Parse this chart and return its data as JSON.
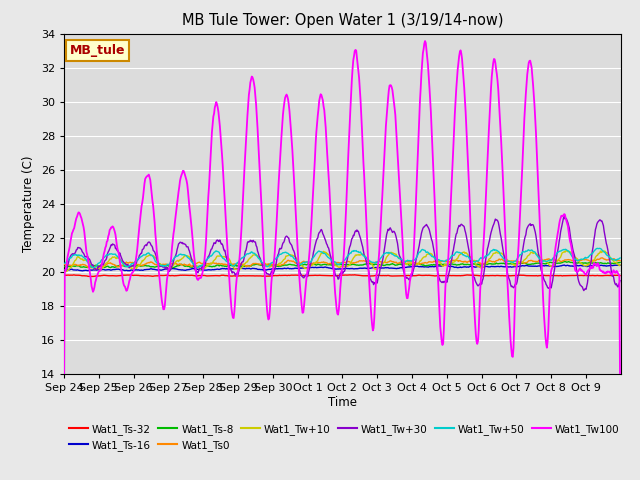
{
  "title": "MB Tule Tower: Open Water 1 (3/19/14-now)",
  "xlabel": "Time",
  "ylabel": "Temperature (C)",
  "ylim": [
    14,
    34
  ],
  "yticks": [
    14,
    16,
    18,
    20,
    22,
    24,
    26,
    28,
    30,
    32,
    34
  ],
  "figsize": [
    6.4,
    4.8
  ],
  "dpi": 100,
  "background_color": "#e8e8e8",
  "plot_bg_color": "#dcdcdc",
  "series": [
    {
      "name": "Wat1_Ts-32",
      "color": "#ff0000"
    },
    {
      "name": "Wat1_Ts-16",
      "color": "#0000cc"
    },
    {
      "name": "Wat1_Ts-8",
      "color": "#00bb00"
    },
    {
      "name": "Wat1_Ts0",
      "color": "#ff8800"
    },
    {
      "name": "Wat1_Tw+10",
      "color": "#cccc00"
    },
    {
      "name": "Wat1_Tw+30",
      "color": "#8800cc"
    },
    {
      "name": "Wat1_Tw+50",
      "color": "#00cccc"
    },
    {
      "name": "Wat1_Tw100",
      "color": "#ff00ff"
    }
  ],
  "x_tick_labels": [
    "Sep 24",
    "Sep 25",
    "Sep 26",
    "Sep 27",
    "Sep 28",
    "Sep 29",
    "Sep 30",
    "Oct 1",
    "Oct 2",
    "Oct 3",
    "Oct 4",
    "Oct 5",
    "Oct 6",
    "Oct 7",
    "Oct 8",
    "Oct 9"
  ],
  "n_days": 16,
  "inset_label": "MB_tule",
  "inset_bg": "#ffffcc",
  "inset_border": "#cc8800",
  "inset_text_color": "#aa0000",
  "grid_color": "#ffffff",
  "legend_row1": [
    "Wat1_Ts-32",
    "Wat1_Ts-16",
    "Wat1_Ts-8",
    "Wat1_Ts0",
    "Wat1_Tw+10",
    "Wat1_Tw+30"
  ],
  "legend_row2": [
    "Wat1_Tw+50",
    "Wat1_Tw100"
  ]
}
